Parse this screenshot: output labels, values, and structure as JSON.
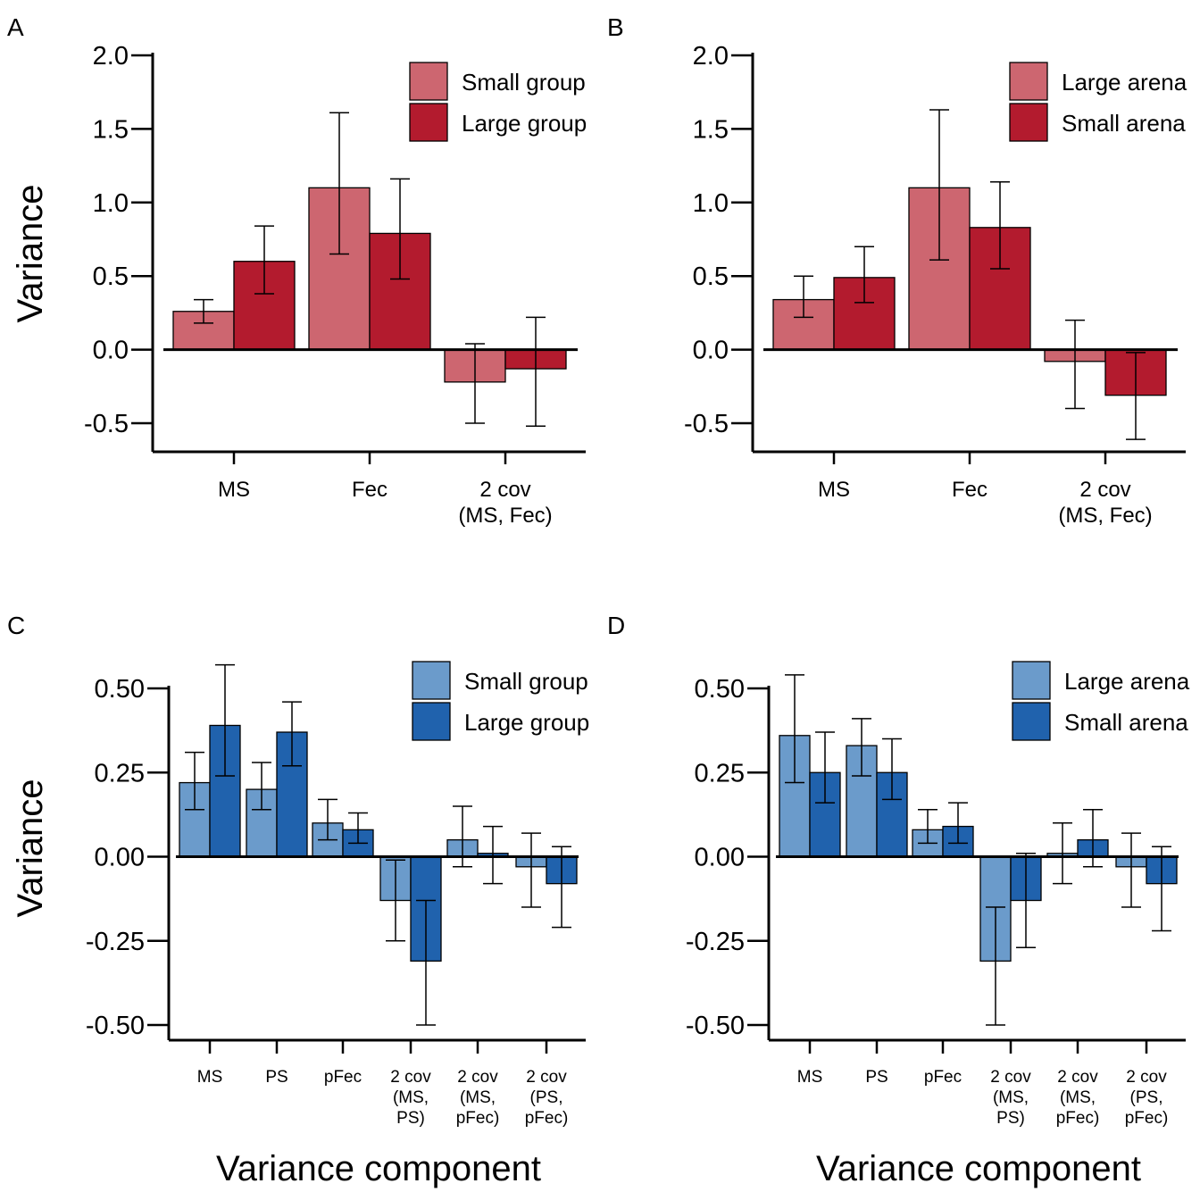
{
  "colors": {
    "red_light": "#CD6670",
    "red_dark": "#B31B2E",
    "blue_light": "#6B9BCB",
    "blue_dark": "#2062AD",
    "axis": "#000000"
  },
  "x_axis_title": "Variance component",
  "y_axis_title": "Variance",
  "chart_data": [
    {
      "panel": "A",
      "type": "bar",
      "ylabel": "Variance",
      "xlabel": "",
      "ylim": [
        -0.7,
        2.0
      ],
      "yticks": [
        -0.5,
        0.0,
        0.5,
        1.0,
        1.5,
        2.0
      ],
      "ytick_labels": [
        "-0.5",
        "0.0",
        "0.5",
        "1.0",
        "1.5",
        "2.0"
      ],
      "categories": [
        [
          "MS"
        ],
        [
          "Fec"
        ],
        [
          "2 cov",
          "(MS, Fec)"
        ]
      ],
      "legend_position": "top-right",
      "series": [
        {
          "name": "Small group",
          "color": "red_light",
          "values": [
            0.26,
            1.1,
            -0.22
          ],
          "err_low": [
            0.18,
            0.65,
            -0.5
          ],
          "err_high": [
            0.34,
            1.61,
            0.04
          ]
        },
        {
          "name": "Large group",
          "color": "red_dark",
          "values": [
            0.6,
            0.79,
            -0.13
          ],
          "err_low": [
            0.38,
            0.48,
            -0.52
          ],
          "err_high": [
            0.84,
            1.16,
            0.22
          ]
        }
      ]
    },
    {
      "panel": "B",
      "type": "bar",
      "ylabel": "",
      "xlabel": "",
      "ylim": [
        -0.7,
        2.0
      ],
      "yticks": [
        -0.5,
        0.0,
        0.5,
        1.0,
        1.5,
        2.0
      ],
      "ytick_labels": [
        "-0.5",
        "0.0",
        "0.5",
        "1.0",
        "1.5",
        "2.0"
      ],
      "categories": [
        [
          "MS"
        ],
        [
          "Fec"
        ],
        [
          "2 cov",
          "(MS, Fec)"
        ]
      ],
      "legend_position": "top-right",
      "series": [
        {
          "name": "Large arena",
          "color": "red_light",
          "values": [
            0.34,
            1.1,
            -0.08
          ],
          "err_low": [
            0.22,
            0.61,
            -0.4
          ],
          "err_high": [
            0.5,
            1.63,
            0.2
          ]
        },
        {
          "name": "Small arena",
          "color": "red_dark",
          "values": [
            0.49,
            0.83,
            -0.31
          ],
          "err_low": [
            0.32,
            0.55,
            -0.61
          ],
          "err_high": [
            0.7,
            1.14,
            -0.02
          ]
        }
      ]
    },
    {
      "panel": "C",
      "type": "bar",
      "ylabel": "Variance",
      "xlabel": "Variance component",
      "ylim": [
        -0.53,
        0.6
      ],
      "yticks": [
        -0.5,
        -0.25,
        0.0,
        0.25,
        0.5
      ],
      "ytick_labels": [
        "-0.50",
        "-0.25",
        "0.00",
        "0.25",
        "0.50"
      ],
      "categories": [
        [
          "MS"
        ],
        [
          "PS"
        ],
        [
          "pFec"
        ],
        [
          "2 cov",
          "(MS,",
          "PS)"
        ],
        [
          "2 cov",
          "(MS,",
          "pFec)"
        ],
        [
          "2 cov",
          "(PS,",
          "pFec)"
        ]
      ],
      "legend_position": "top-right",
      "series": [
        {
          "name": "Small group",
          "color": "blue_light",
          "values": [
            0.22,
            0.2,
            0.1,
            -0.13,
            0.05,
            -0.03
          ],
          "err_low": [
            0.14,
            0.14,
            0.05,
            -0.25,
            -0.03,
            -0.15
          ],
          "err_high": [
            0.31,
            0.28,
            0.17,
            -0.01,
            0.15,
            0.07
          ]
        },
        {
          "name": "Large group",
          "color": "blue_dark",
          "values": [
            0.39,
            0.37,
            0.08,
            -0.31,
            0.01,
            -0.08
          ],
          "err_low": [
            0.24,
            0.27,
            0.04,
            -0.5,
            -0.08,
            -0.21
          ],
          "err_high": [
            0.57,
            0.46,
            0.13,
            -0.13,
            0.09,
            0.03
          ]
        }
      ]
    },
    {
      "panel": "D",
      "type": "bar",
      "ylabel": "",
      "xlabel": "Variance component",
      "ylim": [
        -0.53,
        0.6
      ],
      "yticks": [
        -0.5,
        -0.25,
        0.0,
        0.25,
        0.5
      ],
      "ytick_labels": [
        "-0.50",
        "-0.25",
        "0.00",
        "0.25",
        "0.50"
      ],
      "categories": [
        [
          "MS"
        ],
        [
          "PS"
        ],
        [
          "pFec"
        ],
        [
          "2 cov",
          "(MS,",
          "PS)"
        ],
        [
          "2 cov",
          "(MS,",
          "pFec)"
        ],
        [
          "2 cov",
          "(PS,",
          "pFec)"
        ]
      ],
      "legend_position": "top-right",
      "series": [
        {
          "name": "Large arena",
          "color": "blue_light",
          "values": [
            0.36,
            0.33,
            0.08,
            -0.31,
            0.01,
            -0.03
          ],
          "err_low": [
            0.22,
            0.24,
            0.04,
            -0.5,
            -0.08,
            -0.15
          ],
          "err_high": [
            0.54,
            0.41,
            0.14,
            -0.15,
            0.1,
            0.07
          ]
        },
        {
          "name": "Small arena",
          "color": "blue_dark",
          "values": [
            0.25,
            0.25,
            0.09,
            -0.13,
            0.05,
            -0.08
          ],
          "err_low": [
            0.16,
            0.17,
            0.04,
            -0.27,
            -0.03,
            -0.22
          ],
          "err_high": [
            0.37,
            0.35,
            0.16,
            0.01,
            0.14,
            0.03
          ]
        }
      ]
    }
  ]
}
